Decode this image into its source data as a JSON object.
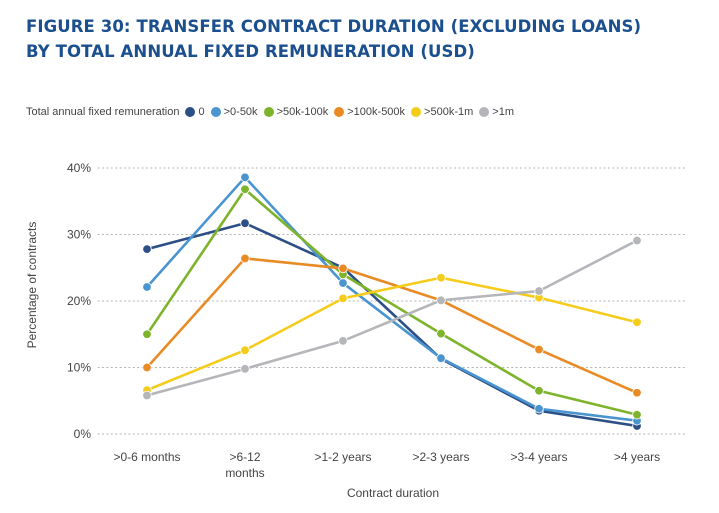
{
  "chart_data": {
    "type": "line",
    "title_line1": "FIGURE 30: TRANSFER CONTRACT DURATION (EXCLUDING LOANS)",
    "title_line2": "BY TOTAL ANNUAL FIXED REMUNERATION (USD)",
    "legend_title": "Total annual fixed remuneration",
    "xlabel": "Contract duration",
    "ylabel": "Percentage of contracts",
    "categories": [
      ">0-6 months",
      ">6-12 months",
      ">1-2 years",
      ">2-3 years",
      ">3-4 years",
      ">4 years"
    ],
    "category_display": [
      [
        ">0-6 months"
      ],
      [
        ">6-12",
        "months"
      ],
      [
        ">1-2 years"
      ],
      [
        ">2-3 years"
      ],
      [
        ">3-4 years"
      ],
      [
        ">4 years"
      ]
    ],
    "ylim": [
      0,
      40
    ],
    "yticks": [
      0,
      10,
      20,
      30,
      40
    ],
    "ytick_labels": [
      "0%",
      "10%",
      "20%",
      "30%",
      "40%"
    ],
    "grid": true,
    "series": [
      {
        "name": "0",
        "color": "#2c4f86",
        "values": [
          27.8,
          31.7,
          25.0,
          11.3,
          3.5,
          1.2
        ]
      },
      {
        "name": ">0-50k",
        "color": "#4a95d0",
        "values": [
          22.1,
          38.6,
          22.7,
          11.4,
          3.8,
          2.0
        ]
      },
      {
        "name": ">50k-100k",
        "color": "#7db42b",
        "values": [
          15.0,
          36.8,
          24.0,
          15.1,
          6.5,
          2.9
        ]
      },
      {
        "name": ">100k-500k",
        "color": "#e98b25",
        "values": [
          10.0,
          26.4,
          24.9,
          20.1,
          12.7,
          6.2
        ]
      },
      {
        "name": ">500k-1m",
        "color": "#f5cc1c",
        "values": [
          6.6,
          12.6,
          20.4,
          23.5,
          20.5,
          16.8
        ]
      },
      {
        "name": ">1m",
        "color": "#b4b6b9",
        "values": [
          5.8,
          9.8,
          14.0,
          20.1,
          21.5,
          29.1
        ]
      }
    ]
  }
}
